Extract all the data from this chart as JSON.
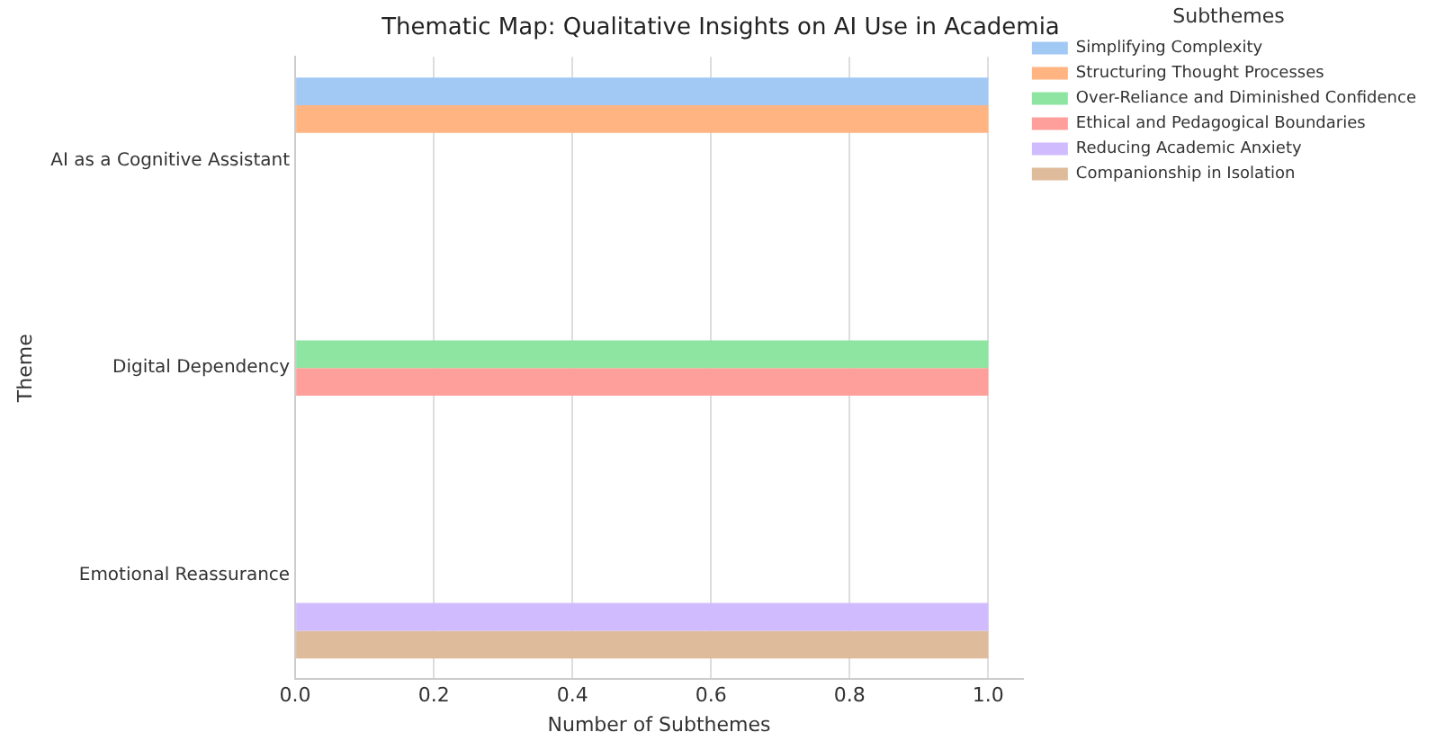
{
  "chart_data": {
    "type": "bar",
    "orientation": "horizontal",
    "title": "Thematic Map: Qualitative Insights on AI Use in Academia",
    "xlabel": "Number of Subthemes",
    "ylabel": "Theme",
    "legend_title": "Subthemes",
    "categories": [
      "AI as a Cognitive Assistant",
      "Digital Dependency",
      "Emotional Reassurance"
    ],
    "series": [
      {
        "name": "Simplifying Complexity",
        "color": "#a1c9f4",
        "values": [
          1,
          null,
          null
        ]
      },
      {
        "name": "Structuring Thought Processes",
        "color": "#ffb482",
        "values": [
          1,
          null,
          null
        ]
      },
      {
        "name": "Over-Reliance and Diminished Confidence",
        "color": "#8de5a1",
        "values": [
          null,
          1,
          null
        ]
      },
      {
        "name": "Ethical and Pedagogical Boundaries",
        "color": "#ff9f9b",
        "values": [
          null,
          1,
          null
        ]
      },
      {
        "name": "Reducing Academic Anxiety",
        "color": "#d0bbff",
        "values": [
          null,
          null,
          1
        ]
      },
      {
        "name": "Companionship in Isolation",
        "color": "#debb9b",
        "values": [
          null,
          null,
          1
        ]
      }
    ],
    "xlim": [
      0,
      1.05
    ],
    "xticks": [
      {
        "value": 0,
        "label": "0.0"
      },
      {
        "value": 0.2,
        "label": "0.2"
      },
      {
        "value": 0.4,
        "label": "0.4"
      },
      {
        "value": 0.6,
        "label": "0.6"
      },
      {
        "value": 0.8,
        "label": "0.8"
      },
      {
        "value": 1,
        "label": "1.0"
      }
    ],
    "grid": "x",
    "legend": "top right"
  }
}
